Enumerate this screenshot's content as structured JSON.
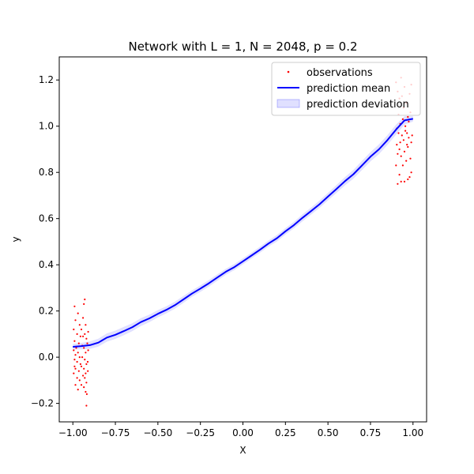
{
  "chart_data": {
    "type": "line",
    "title": "Network with L = 1, N = 2048, p = 0.2",
    "xlabel": "X",
    "ylabel": "y",
    "xlim": [
      -1.08,
      1.08
    ],
    "ylim": [
      -0.28,
      1.3
    ],
    "xticks": [
      -1.0,
      -0.75,
      -0.5,
      -0.25,
      0.0,
      0.25,
      0.5,
      0.75,
      1.0
    ],
    "xtick_labels": [
      "−1.00",
      "−0.75",
      "−0.50",
      "−0.25",
      "0.00",
      "0.25",
      "0.50",
      "0.75",
      "1.00"
    ],
    "yticks": [
      -0.2,
      0.0,
      0.2,
      0.4,
      0.6,
      0.8,
      1.0,
      1.2
    ],
    "ytick_labels": [
      "−0.2",
      "0.0",
      "0.2",
      "0.4",
      "0.6",
      "0.8",
      "1.0",
      "1.2"
    ],
    "grid": false,
    "legend_position": "top-right",
    "legend": [
      "observations",
      "prediction mean",
      "prediction deviation"
    ],
    "colors": {
      "observations": "#ff0000",
      "prediction_mean": "#0000ff",
      "prediction_deviation": "#0000ff"
    },
    "series": [
      {
        "name": "prediction mean",
        "x": [
          -1.0,
          -0.95,
          -0.9,
          -0.85,
          -0.8,
          -0.75,
          -0.7,
          -0.65,
          -0.6,
          -0.55,
          -0.5,
          -0.45,
          -0.4,
          -0.35,
          -0.3,
          -0.25,
          -0.2,
          -0.15,
          -0.1,
          -0.05,
          0.0,
          0.05,
          0.1,
          0.15,
          0.2,
          0.25,
          0.3,
          0.35,
          0.4,
          0.45,
          0.5,
          0.55,
          0.6,
          0.65,
          0.7,
          0.75,
          0.8,
          0.85,
          0.9,
          0.95,
          1.0
        ],
        "y": [
          0.045,
          0.048,
          0.052,
          0.063,
          0.085,
          0.097,
          0.113,
          0.13,
          0.152,
          0.168,
          0.188,
          0.205,
          0.225,
          0.25,
          0.275,
          0.297,
          0.32,
          0.345,
          0.37,
          0.39,
          0.415,
          0.44,
          0.465,
          0.492,
          0.515,
          0.545,
          0.572,
          0.603,
          0.632,
          0.662,
          0.695,
          0.728,
          0.762,
          0.792,
          0.83,
          0.868,
          0.9,
          0.94,
          0.985,
          1.025,
          1.032
        ]
      },
      {
        "name": "prediction deviation",
        "band_halfwidth": [
          0.012,
          0.014,
          0.016,
          0.017,
          0.018,
          0.018,
          0.018,
          0.017,
          0.017,
          0.016,
          0.016,
          0.015,
          0.015,
          0.015,
          0.014,
          0.014,
          0.014,
          0.014,
          0.013,
          0.013,
          0.013,
          0.013,
          0.013,
          0.013,
          0.014,
          0.014,
          0.014,
          0.015,
          0.015,
          0.016,
          0.016,
          0.017,
          0.018,
          0.019,
          0.02,
          0.02,
          0.021,
          0.021,
          0.022,
          0.018,
          0.012
        ]
      },
      {
        "name": "observations",
        "points": [
          [
            -0.99,
            0.22
          ],
          [
            -0.97,
            0.19
          ],
          [
            -0.985,
            0.16
          ],
          [
            -0.96,
            0.14
          ],
          [
            -0.995,
            0.12
          ],
          [
            -0.975,
            0.1
          ],
          [
            -0.955,
            0.09
          ],
          [
            -0.99,
            0.07
          ],
          [
            -0.965,
            0.06
          ],
          [
            -0.98,
            0.04
          ],
          [
            -0.995,
            0.03
          ],
          [
            -0.97,
            0.02
          ],
          [
            -0.985,
            0.01
          ],
          [
            -0.96,
            0.0
          ],
          [
            -0.99,
            -0.01
          ],
          [
            -0.975,
            -0.02
          ],
          [
            -0.955,
            -0.03
          ],
          [
            -0.985,
            -0.05
          ],
          [
            -0.965,
            -0.06
          ],
          [
            -0.995,
            -0.07
          ],
          [
            -0.975,
            -0.09
          ],
          [
            -0.96,
            -0.1
          ],
          [
            -0.985,
            -0.12
          ],
          [
            -0.97,
            -0.14
          ],
          [
            -0.95,
            0.12
          ],
          [
            -0.945,
            0.05
          ],
          [
            -0.95,
            -0.04
          ],
          [
            -0.94,
            0.17
          ],
          [
            -0.94,
            -0.08
          ],
          [
            -0.93,
            0.25
          ],
          [
            -0.935,
            0.23
          ],
          [
            -0.925,
            0.14
          ],
          [
            -0.93,
            0.1
          ],
          [
            -0.92,
            0.08
          ],
          [
            -0.935,
            0.04
          ],
          [
            -0.925,
            0.02
          ],
          [
            -0.93,
            -0.01
          ],
          [
            -0.92,
            -0.03
          ],
          [
            -0.935,
            -0.05
          ],
          [
            -0.925,
            -0.07
          ],
          [
            -0.93,
            -0.09
          ],
          [
            -0.92,
            -0.11
          ],
          [
            -0.935,
            -0.13
          ],
          [
            -0.925,
            -0.15
          ],
          [
            -0.918,
            -0.16
          ],
          [
            -0.92,
            -0.21
          ],
          [
            -0.915,
            0.06
          ],
          [
            -0.913,
            -0.02
          ],
          [
            -0.91,
            0.11
          ],
          [
            -0.912,
            -0.06
          ],
          [
            -0.945,
            0.0
          ],
          [
            -0.94,
            0.09
          ],
          [
            -0.95,
            -0.12
          ],
          [
            -0.91,
            0.03
          ],
          [
            -0.99,
            -0.04
          ],
          [
            0.9,
            1.19
          ],
          [
            0.91,
            1.15
          ],
          [
            0.93,
            1.21
          ],
          [
            0.92,
            1.12
          ],
          [
            0.95,
            1.17
          ],
          [
            0.96,
            1.1
          ],
          [
            0.98,
            1.14
          ],
          [
            0.99,
            1.18
          ],
          [
            0.985,
            1.06
          ],
          [
            0.97,
            1.04
          ],
          [
            0.94,
            1.03
          ],
          [
            0.925,
            1.01
          ],
          [
            0.905,
            0.99
          ],
          [
            0.915,
            0.97
          ],
          [
            0.935,
            0.96
          ],
          [
            0.955,
            0.98
          ],
          [
            0.975,
            0.95
          ],
          [
            0.99,
            0.93
          ],
          [
            0.965,
            0.92
          ],
          [
            0.945,
            0.94
          ],
          [
            0.92,
            0.9
          ],
          [
            0.91,
            0.88
          ],
          [
            0.93,
            0.87
          ],
          [
            0.95,
            0.89
          ],
          [
            0.97,
            0.91
          ],
          [
            0.985,
            0.86
          ],
          [
            0.96,
            0.85
          ],
          [
            0.94,
            0.83
          ],
          [
            0.9,
            0.83
          ],
          [
            0.92,
            0.79
          ],
          [
            0.99,
            0.8
          ],
          [
            0.98,
            0.78
          ],
          [
            0.93,
            0.76
          ],
          [
            0.95,
            0.76
          ],
          [
            0.97,
            0.77
          ],
          [
            0.91,
            0.75
          ],
          [
            0.925,
            0.93
          ],
          [
            0.955,
            1.0
          ],
          [
            0.945,
            1.08
          ],
          [
            0.935,
            1.13
          ],
          [
            0.975,
            1.02
          ],
          [
            0.915,
            1.05
          ],
          [
            0.995,
            0.96
          ],
          [
            0.905,
            0.92
          ],
          [
            0.965,
            0.97
          ]
        ]
      }
    ]
  }
}
